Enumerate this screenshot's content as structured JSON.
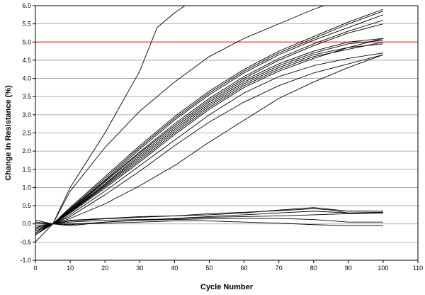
{
  "chart_data": {
    "type": "line",
    "title": "",
    "xlabel": "Cycle Number",
    "ylabel": "Change in Resistance (%)",
    "xlim": [
      0,
      110
    ],
    "ylim": [
      -1.0,
      6.0
    ],
    "xticks": [
      0,
      10,
      20,
      30,
      40,
      50,
      60,
      70,
      80,
      90,
      100,
      110
    ],
    "yticks": [
      -1.0,
      -0.5,
      0.0,
      0.5,
      1.0,
      1.5,
      2.0,
      2.5,
      3.0,
      3.5,
      4.0,
      4.5,
      5.0,
      5.5,
      6.0
    ],
    "grid": true,
    "threshold": {
      "y": 5.0,
      "color": "#e8392f"
    },
    "line_color": "#000000",
    "series": [
      {
        "x": [
          0,
          5,
          10,
          20,
          30,
          35,
          40,
          43
        ],
        "y": [
          -0.5,
          0.0,
          1.0,
          2.5,
          4.2,
          5.4,
          5.8,
          6.0
        ]
      },
      {
        "x": [
          0,
          5,
          10,
          20,
          30,
          40,
          50,
          60,
          70,
          80,
          83
        ],
        "y": [
          -0.3,
          0.0,
          0.9,
          2.1,
          3.1,
          3.9,
          4.6,
          5.1,
          5.5,
          5.9,
          6.0
        ]
      },
      {
        "x": [
          0,
          5,
          10,
          20,
          30,
          40,
          50,
          60,
          70,
          80,
          90,
          100
        ],
        "y": [
          -0.2,
          0.0,
          0.45,
          1.3,
          2.15,
          2.95,
          3.65,
          4.25,
          4.75,
          5.15,
          5.55,
          5.9
        ]
      },
      {
        "x": [
          0,
          5,
          10,
          20,
          30,
          40,
          50,
          60,
          70,
          80,
          90,
          100
        ],
        "y": [
          -0.25,
          0.0,
          0.42,
          1.25,
          2.1,
          2.9,
          3.6,
          4.2,
          4.7,
          5.1,
          5.5,
          5.85
        ]
      },
      {
        "x": [
          0,
          5,
          10,
          20,
          30,
          40,
          50,
          60,
          70,
          80,
          90,
          100
        ],
        "y": [
          -0.15,
          0.0,
          0.4,
          1.2,
          2.05,
          2.85,
          3.55,
          4.15,
          4.65,
          5.05,
          5.4,
          5.75
        ]
      },
      {
        "x": [
          0,
          5,
          10,
          20,
          30,
          40,
          50,
          60,
          70,
          80,
          90,
          100
        ],
        "y": [
          -0.2,
          0.0,
          0.38,
          1.18,
          1.98,
          2.75,
          3.45,
          4.05,
          4.55,
          4.95,
          5.3,
          5.6
        ]
      },
      {
        "x": [
          0,
          5,
          10,
          20,
          30,
          40,
          50,
          60,
          70,
          80,
          90,
          100
        ],
        "y": [
          -0.1,
          0.0,
          0.36,
          1.15,
          1.95,
          2.7,
          3.4,
          4.0,
          4.5,
          4.9,
          5.25,
          5.5
        ]
      },
      {
        "x": [
          0,
          5,
          10,
          20,
          30,
          40,
          50,
          60,
          70,
          80,
          90,
          100
        ],
        "y": [
          -0.3,
          0.0,
          0.35,
          1.1,
          1.9,
          2.65,
          3.35,
          3.95,
          4.4,
          4.75,
          5.0,
          5.1
        ]
      },
      {
        "x": [
          0,
          5,
          10,
          20,
          30,
          40,
          50,
          60,
          70,
          80,
          90,
          100
        ],
        "y": [
          -0.2,
          0.0,
          0.34,
          1.08,
          1.85,
          2.6,
          3.3,
          3.9,
          4.35,
          4.7,
          4.95,
          5.05
        ]
      },
      {
        "x": [
          0,
          5,
          10,
          20,
          30,
          40,
          50,
          60,
          70,
          80,
          90,
          100
        ],
        "y": [
          -0.1,
          0.0,
          0.33,
          1.05,
          1.8,
          2.55,
          3.25,
          3.85,
          4.3,
          4.65,
          4.85,
          4.95
        ]
      },
      {
        "x": [
          0,
          5,
          10,
          20,
          30,
          40,
          50,
          60,
          70,
          80,
          90,
          100
        ],
        "y": [
          -0.25,
          0.0,
          0.32,
          1.02,
          1.75,
          2.5,
          3.2,
          3.8,
          4.25,
          4.6,
          4.8,
          5.0
        ]
      },
      {
        "x": [
          0,
          5,
          10,
          20,
          30,
          40,
          50,
          60,
          70,
          80,
          90,
          100
        ],
        "y": [
          -0.15,
          0.0,
          0.3,
          0.98,
          1.7,
          2.45,
          3.15,
          3.75,
          4.2,
          4.55,
          4.85,
          5.1
        ]
      },
      {
        "x": [
          0,
          5,
          10,
          20,
          30,
          40,
          50,
          60,
          70,
          80,
          90,
          100
        ],
        "y": [
          -0.2,
          0.0,
          0.25,
          0.9,
          1.6,
          2.3,
          3.0,
          3.6,
          4.05,
          4.35,
          4.55,
          4.7
        ]
      },
      {
        "x": [
          0,
          5,
          10,
          20,
          30,
          40,
          50,
          60,
          70,
          80,
          90,
          100
        ],
        "y": [
          -0.3,
          0.0,
          0.2,
          0.8,
          1.45,
          2.15,
          2.8,
          3.35,
          3.8,
          4.15,
          4.4,
          4.65
        ]
      },
      {
        "x": [
          0,
          5,
          10,
          20,
          30,
          40,
          50,
          60,
          70,
          80,
          90,
          100
        ],
        "y": [
          -0.1,
          0.0,
          0.15,
          0.55,
          1.05,
          1.6,
          2.25,
          2.85,
          3.45,
          3.9,
          4.3,
          4.65
        ]
      },
      {
        "x": [
          0,
          5,
          10,
          20,
          30,
          40,
          50,
          60,
          70,
          80,
          85,
          90,
          100
        ],
        "y": [
          0.05,
          0.0,
          0.08,
          0.14,
          0.18,
          0.22,
          0.25,
          0.3,
          0.38,
          0.45,
          0.4,
          0.35,
          0.35
        ]
      },
      {
        "x": [
          0,
          5,
          10,
          20,
          30,
          40,
          50,
          60,
          70,
          80,
          85,
          90,
          100
        ],
        "y": [
          -0.1,
          0.0,
          0.1,
          0.15,
          0.2,
          0.22,
          0.28,
          0.32,
          0.36,
          0.42,
          0.38,
          0.3,
          0.32
        ]
      },
      {
        "x": [
          0,
          5,
          10,
          20,
          30,
          40,
          50,
          60,
          70,
          80,
          90,
          100
        ],
        "y": [
          -0.05,
          0.0,
          -0.05,
          0.05,
          0.1,
          0.15,
          0.2,
          0.25,
          0.3,
          0.35,
          0.3,
          0.3
        ]
      },
      {
        "x": [
          0,
          5,
          10,
          20,
          30,
          40,
          50,
          60,
          70,
          80,
          90,
          100
        ],
        "y": [
          0.0,
          0.0,
          0.05,
          0.1,
          0.12,
          0.14,
          0.18,
          0.2,
          0.22,
          0.25,
          0.28,
          0.3
        ]
      },
      {
        "x": [
          0,
          5,
          10,
          20,
          30,
          40,
          50,
          60,
          70,
          80,
          90,
          100
        ],
        "y": [
          0.05,
          0.0,
          -0.02,
          0.05,
          0.1,
          0.12,
          0.14,
          0.15,
          0.15,
          0.12,
          0.05,
          0.05
        ]
      },
      {
        "x": [
          0,
          5,
          10,
          20,
          30,
          40,
          50,
          60,
          70,
          80,
          90,
          100
        ],
        "y": [
          0.1,
          0.0,
          0.0,
          0.02,
          0.05,
          0.08,
          0.08,
          0.05,
          0.02,
          -0.02,
          -0.05,
          -0.05
        ]
      }
    ]
  }
}
